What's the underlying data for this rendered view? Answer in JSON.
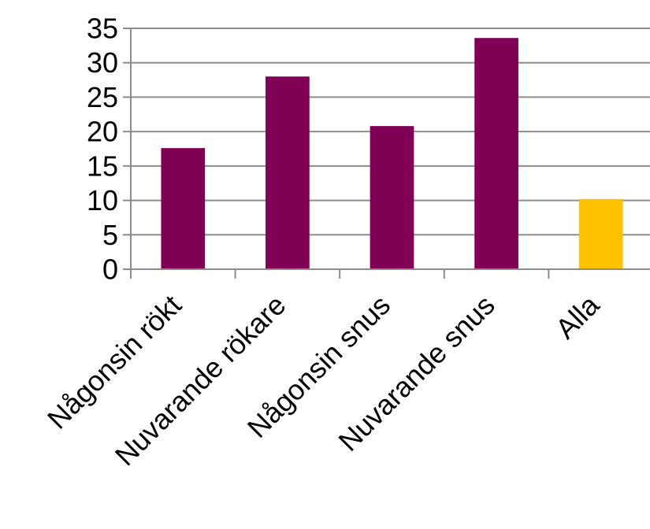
{
  "chart_data": {
    "type": "bar",
    "categories": [
      "Någonsin rökt",
      "Nuvarande rökare",
      "Någonsin snus",
      "Nuvarande snus",
      "Alla"
    ],
    "values": [
      17.6,
      28.0,
      20.8,
      33.6,
      10.2
    ],
    "bar_colors": [
      "#800055",
      "#800055",
      "#800055",
      "#800055",
      "#ffc000"
    ],
    "ylim": [
      0,
      35
    ],
    "yticks": [
      0,
      5,
      10,
      15,
      20,
      25,
      30,
      35
    ],
    "ytick_labels": [
      "0",
      "5",
      "10",
      "15",
      "20",
      "25",
      "30",
      "35"
    ],
    "grid": true,
    "title": "",
    "xlabel": "",
    "ylabel": ""
  },
  "colors": {
    "gridline": "#8c8c8c",
    "axis": "#8c8c8c"
  }
}
